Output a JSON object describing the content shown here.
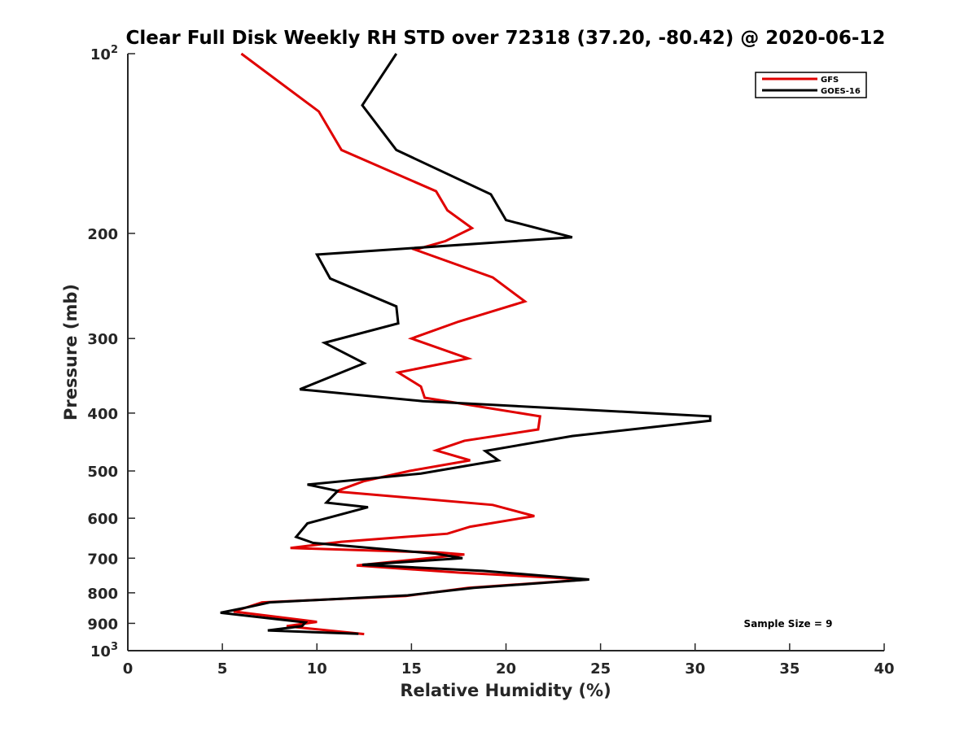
{
  "chart_data": {
    "type": "line",
    "title": "Clear Full Disk Weekly RH STD over 72318 (37.20, -80.42) @ 2020-06-12",
    "xlabel": "Relative Humidity (%)",
    "ylabel": "Pressure (mb)",
    "xlim": [
      0,
      40
    ],
    "ylim": [
      100,
      1000
    ],
    "y_scale": "log",
    "y_reversed": true,
    "grid": false,
    "legend_position": "top-right",
    "x_ticks": [
      0,
      5,
      10,
      15,
      20,
      25,
      30,
      35,
      40
    ],
    "x_tick_labels": [
      "0",
      "5",
      "10",
      "15",
      "20",
      "25",
      "30",
      "35",
      "40"
    ],
    "y_ticks": [
      100,
      200,
      300,
      400,
      500,
      600,
      700,
      800,
      900,
      1000
    ],
    "y_tick_labels": [
      {
        "base": "10",
        "exp": "2"
      },
      {
        "base": "200",
        "exp": ""
      },
      {
        "base": "300",
        "exp": ""
      },
      {
        "base": "400",
        "exp": ""
      },
      {
        "base": "500",
        "exp": ""
      },
      {
        "base": "600",
        "exp": ""
      },
      {
        "base": "700",
        "exp": ""
      },
      {
        "base": "800",
        "exp": ""
      },
      {
        "base": "900",
        "exp": ""
      },
      {
        "base": "10",
        "exp": "3"
      }
    ],
    "annotation": "Sample Size = 9",
    "series": [
      {
        "name": "GFS",
        "color": "#e00000",
        "points": [
          [
            6.0,
            100
          ],
          [
            10.1,
            125
          ],
          [
            11.3,
            145
          ],
          [
            16.3,
            170
          ],
          [
            16.9,
            183
          ],
          [
            18.2,
            196
          ],
          [
            16.8,
            206
          ],
          [
            15.2,
            213
          ],
          [
            19.3,
            237
          ],
          [
            21.0,
            260
          ],
          [
            17.5,
            281
          ],
          [
            15.0,
            300
          ],
          [
            18.0,
            324
          ],
          [
            14.3,
            342
          ],
          [
            15.5,
            361
          ],
          [
            15.7,
            377
          ],
          [
            21.8,
            405
          ],
          [
            21.7,
            426
          ],
          [
            17.8,
            445
          ],
          [
            16.3,
            462
          ],
          [
            18.1,
            480
          ],
          [
            14.9,
            500
          ],
          [
            12.5,
            520
          ],
          [
            11.0,
            541
          ],
          [
            19.3,
            570
          ],
          [
            21.5,
            595
          ],
          [
            18.1,
            620
          ],
          [
            16.9,
            637
          ],
          [
            11.3,
            657
          ],
          [
            8.6,
            673
          ],
          [
            16.5,
            685
          ],
          [
            17.8,
            690
          ],
          [
            12.1,
            720
          ],
          [
            17.5,
            740
          ],
          [
            24.3,
            760
          ],
          [
            18.0,
            785
          ],
          [
            14.7,
            810
          ],
          [
            7.1,
            830
          ],
          [
            5.6,
            860
          ],
          [
            10.0,
            895
          ],
          [
            8.4,
            910
          ],
          [
            12.5,
            938
          ]
        ]
      },
      {
        "name": "GOES-16",
        "color": "#000000",
        "points": [
          [
            14.2,
            100
          ],
          [
            12.4,
            122
          ],
          [
            14.2,
            145
          ],
          [
            19.2,
            172
          ],
          [
            20.0,
            190
          ],
          [
            23.5,
            203
          ],
          [
            10.0,
            217
          ],
          [
            10.7,
            238
          ],
          [
            14.2,
            265
          ],
          [
            14.3,
            283
          ],
          [
            10.4,
            305
          ],
          [
            12.5,
            330
          ],
          [
            9.1,
            365
          ],
          [
            15.6,
            382
          ],
          [
            30.8,
            405
          ],
          [
            30.8,
            412
          ],
          [
            23.5,
            437
          ],
          [
            18.9,
            463
          ],
          [
            19.6,
            480
          ],
          [
            15.5,
            505
          ],
          [
            9.5,
            527
          ],
          [
            11.1,
            540
          ],
          [
            10.5,
            565
          ],
          [
            12.7,
            575
          ],
          [
            9.5,
            612
          ],
          [
            8.9,
            645
          ],
          [
            9.8,
            660
          ],
          [
            16.3,
            688
          ],
          [
            17.7,
            700
          ],
          [
            12.4,
            718
          ],
          [
            18.8,
            735
          ],
          [
            24.4,
            760
          ],
          [
            18.3,
            785
          ],
          [
            14.8,
            808
          ],
          [
            7.5,
            830
          ],
          [
            6.4,
            845
          ],
          [
            4.9,
            864
          ],
          [
            9.4,
            897
          ],
          [
            9.2,
            910
          ],
          [
            7.4,
            925
          ],
          [
            12.2,
            937
          ]
        ]
      }
    ]
  }
}
